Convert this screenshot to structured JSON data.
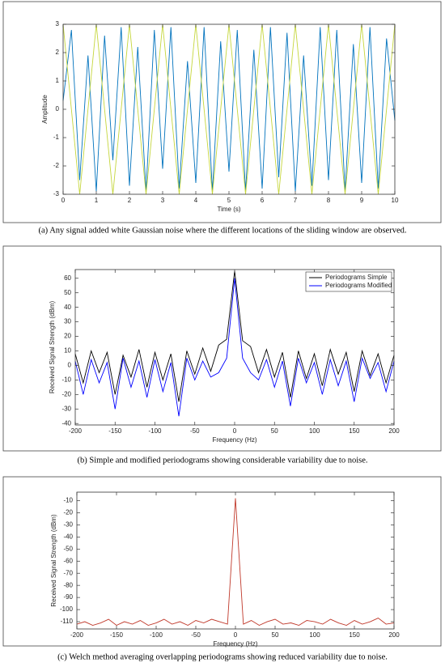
{
  "chart_data": [
    {
      "type": "line",
      "x_label": "Time (s)",
      "y_label": "Amplitude",
      "caption": "(a) Any signal added white Gaussian noise where the different locations of the sliding window are observed.",
      "x": [
        0,
        0.25,
        0.5,
        0.75,
        1,
        1.25,
        1.5,
        1.75,
        2,
        2.25,
        2.5,
        2.75,
        3,
        3.25,
        3.5,
        3.75,
        4,
        4.25,
        4.5,
        4.75,
        5,
        5.25,
        5.5,
        5.75,
        6,
        6.25,
        6.5,
        6.75,
        7,
        7.25,
        7.5,
        7.75,
        8,
        8.25,
        8.5,
        8.75,
        9,
        9.25,
        9.5,
        9.75,
        10
      ],
      "series": [
        {
          "color": "#0072bd",
          "values": [
            0.3,
            2.8,
            -2.5,
            1.9,
            -2.9,
            2.6,
            -1.8,
            2.9,
            -2.7,
            2.2,
            -2.9,
            2.8,
            -2.1,
            2.9,
            -2.8,
            1.7,
            -2.6,
            2.9,
            -2.9,
            2.4,
            -2.2,
            2.8,
            -2.9,
            2.1,
            -2.8,
            2.9,
            -2.4,
            2.7,
            -2.9,
            1.9,
            -2.7,
            2.9,
            -2.5,
            2.8,
            -2.9,
            2.3,
            -2.6,
            2.9,
            -2.8,
            2.5,
            -0.4
          ]
        },
        {
          "color": "#c5d63c",
          "values": [
            3,
            0,
            -3,
            0,
            3,
            0,
            -3,
            0,
            3,
            0,
            -3,
            0,
            3,
            0,
            -3,
            0,
            3,
            0,
            -3,
            0,
            3,
            0,
            -3,
            0,
            3,
            0,
            -3,
            0,
            3,
            0,
            -3,
            0,
            3,
            0,
            -3,
            0,
            3,
            0,
            -3,
            0,
            3
          ]
        }
      ],
      "xlim": [
        0,
        10
      ],
      "xticks": [
        0,
        1,
        2,
        3,
        4,
        5,
        6,
        7,
        8,
        9,
        10
      ],
      "ylim": [
        -3,
        3
      ],
      "yticks": [
        -3,
        -2,
        -1,
        0,
        1,
        2,
        3
      ]
    },
    {
      "type": "line",
      "x_label": "Frequency (Hz)",
      "y_label": "Received Signal Strength (dBm)",
      "caption": "(b) Simple and modified periodograms showing considerable variability due to noise.",
      "legend": "upper right",
      "x": [
        -200,
        -190,
        -180,
        -170,
        -160,
        -150,
        -140,
        -130,
        -120,
        -110,
        -100,
        -90,
        -80,
        -70,
        -60,
        -50,
        -40,
        -30,
        -20,
        -10,
        0,
        10,
        20,
        30,
        40,
        50,
        60,
        70,
        80,
        90,
        100,
        110,
        120,
        130,
        140,
        150,
        160,
        170,
        180,
        190,
        200
      ],
      "series": [
        {
          "name": "Periodograms Simple",
          "color": "#000000",
          "values": [
            8,
            -12,
            10,
            -5,
            9,
            -20,
            7,
            -8,
            11,
            -15,
            9,
            -10,
            8,
            -25,
            10,
            -6,
            12,
            -4,
            14,
            18,
            65,
            17,
            13,
            -5,
            11,
            -8,
            9,
            -22,
            10,
            -9,
            8,
            -14,
            11,
            -6,
            9,
            -18,
            10,
            -7,
            8,
            -12,
            7
          ]
        },
        {
          "name": "Periodograms Modified",
          "color": "#0000ff",
          "values": [
            3,
            -20,
            4,
            -12,
            2,
            -30,
            5,
            -15,
            3,
            -22,
            4,
            -18,
            2,
            -35,
            5,
            -10,
            3,
            -8,
            -5,
            5,
            60,
            5,
            -5,
            -10,
            4,
            -15,
            3,
            -28,
            5,
            -12,
            2,
            -20,
            4,
            -14,
            3,
            -25,
            5,
            -9,
            2,
            -18,
            3
          ]
        }
      ],
      "xlim": [
        -200,
        200
      ],
      "xticks": [
        -200,
        -150,
        -100,
        -50,
        0,
        50,
        100,
        150,
        200
      ],
      "ylim": [
        -41,
        66
      ],
      "yticks": [
        -40,
        -30,
        -20,
        -10,
        0,
        10,
        20,
        30,
        40,
        50,
        60
      ]
    },
    {
      "type": "line",
      "x_label": "Frequency (Hz)",
      "y_label": "Received Signal Strength (dBm)",
      "caption": "(c) Welch method averaging overlapping periodograms showing reduced variability due to noise.",
      "x": [
        -200,
        -190,
        -180,
        -170,
        -160,
        -150,
        -140,
        -130,
        -120,
        -110,
        -100,
        -90,
        -80,
        -70,
        -60,
        -50,
        -40,
        -30,
        -20,
        -10,
        0,
        10,
        20,
        30,
        40,
        50,
        60,
        70,
        80,
        90,
        100,
        110,
        120,
        130,
        140,
        150,
        160,
        170,
        180,
        190,
        200
      ],
      "series": [
        {
          "color": "#c0392b",
          "values": [
            -112,
            -110,
            -113,
            -111,
            -108,
            -113,
            -110,
            -112,
            -109,
            -113,
            -111,
            -108,
            -112,
            -110,
            -113,
            -109,
            -111,
            -108,
            -110,
            -112,
            -8,
            -112,
            -109,
            -113,
            -110,
            -108,
            -112,
            -111,
            -113,
            -109,
            -110,
            -112,
            -108,
            -111,
            -113,
            -109,
            -112,
            -110,
            -107,
            -112,
            -111
          ]
        }
      ],
      "xlim": [
        -200,
        200
      ],
      "xticks": [
        -200,
        -150,
        -100,
        -50,
        0,
        50,
        100,
        150,
        200
      ],
      "ylim": [
        -116,
        -3
      ],
      "yticks": [
        -10,
        -20,
        -30,
        -40,
        -50,
        -60,
        -70,
        -80,
        -90,
        -100,
        -110
      ]
    }
  ]
}
